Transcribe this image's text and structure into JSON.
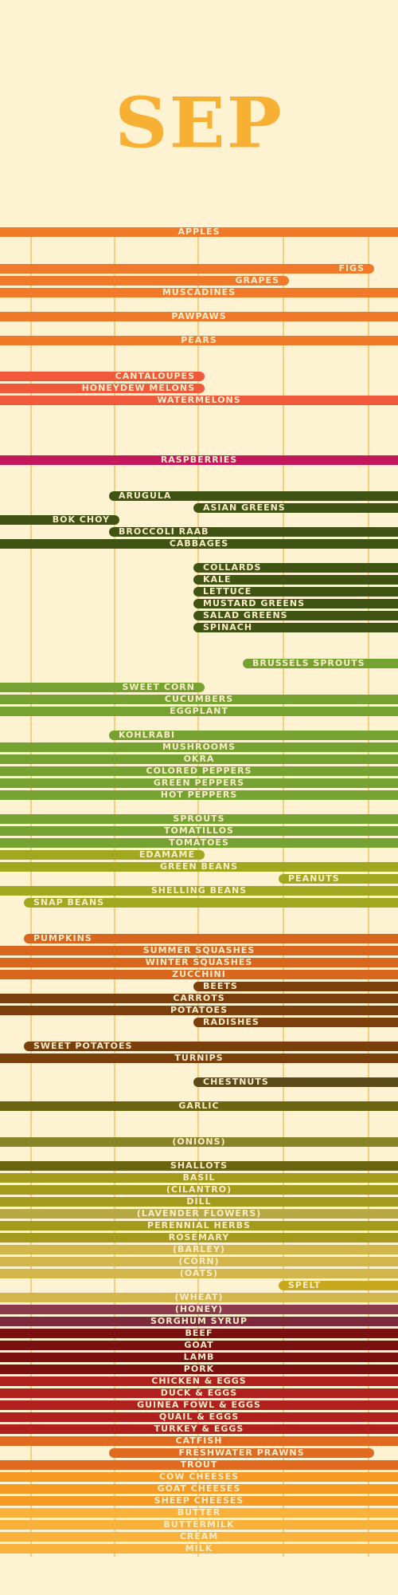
{
  "title": "SEP",
  "crops": [
    {
      "label": "APPLES",
      "color": "#f07a2a",
      "start": 0,
      "end": 500
    },
    {
      "label": "FIGS",
      "color": "#f07a2a",
      "start": 0,
      "end": 470
    },
    {
      "label": "GRAPES",
      "color": "#f07a2a",
      "start": 0,
      "end": 363
    },
    {
      "label": "MUSCADINES",
      "color": "#f07a2a",
      "start": 0,
      "end": 500
    },
    {
      "label": "PAWPAWS",
      "color": "#f07a2a",
      "start": 0,
      "end": 500
    },
    {
      "label": "PEARS",
      "color": "#f07a2a",
      "start": 0,
      "end": 500
    },
    {
      "label": "CANTALOUPES",
      "color": "#f05a3a",
      "start": 0,
      "end": 257
    },
    {
      "label": "HONEYDEW MELONS",
      "color": "#f05a3a",
      "start": 0,
      "end": 257
    },
    {
      "label": "WATERMELONS",
      "color": "#f05a3a",
      "start": 0,
      "end": 500
    },
    {
      "label": "RASPBERRIES",
      "color": "#c2185b",
      "start": 0,
      "end": 500
    },
    {
      "label": "ARUGULA",
      "color": "#3f5412",
      "start": 137,
      "end": 500
    },
    {
      "label": "ASIAN GREENS",
      "color": "#3f5412",
      "start": 243,
      "end": 500
    },
    {
      "label": "BOK CHOY",
      "color": "#3f5412",
      "start": 0,
      "end": 150
    },
    {
      "label": "BROCCOLI RAAB",
      "color": "#3f5412",
      "start": 137,
      "end": 500
    },
    {
      "label": "CABBAGES",
      "color": "#3f5412",
      "start": 0,
      "end": 500
    },
    {
      "label": "COLLARDS",
      "color": "#3f5412",
      "start": 243,
      "end": 500
    },
    {
      "label": "KALE",
      "color": "#3f5412",
      "start": 243,
      "end": 500
    },
    {
      "label": "LETTUCE",
      "color": "#3f5412",
      "start": 243,
      "end": 500
    },
    {
      "label": "MUSTARD GREENS",
      "color": "#3f5412",
      "start": 243,
      "end": 500
    },
    {
      "label": "SALAD GREENS",
      "color": "#3f5412",
      "start": 243,
      "end": 500
    },
    {
      "label": "SPINACH",
      "color": "#3f5412",
      "start": 243,
      "end": 500
    },
    {
      "label": "BRUSSELS SPROUTS",
      "color": "#76a232",
      "start": 305,
      "end": 500
    },
    {
      "label": "SWEET CORN",
      "color": "#76a232",
      "start": 0,
      "end": 257
    },
    {
      "label": "CUCUMBERS",
      "color": "#76a232",
      "start": 0,
      "end": 500
    },
    {
      "label": "EGGPLANT",
      "color": "#76a232",
      "start": 0,
      "end": 500
    },
    {
      "label": "KOHLRABI",
      "color": "#76a232",
      "start": 137,
      "end": 500
    },
    {
      "label": "MUSHROOMS",
      "color": "#76a232",
      "start": 0,
      "end": 500
    },
    {
      "label": "OKRA",
      "color": "#76a232",
      "start": 0,
      "end": 500
    },
    {
      "label": "COLORED PEPPERS",
      "color": "#76a232",
      "start": 0,
      "end": 500
    },
    {
      "label": "GREEN PEPPERS",
      "color": "#76a232",
      "start": 0,
      "end": 500
    },
    {
      "label": "HOT PEPPERS",
      "color": "#76a232",
      "start": 0,
      "end": 500
    },
    {
      "label": "SPROUTS",
      "color": "#76a232",
      "start": 0,
      "end": 500
    },
    {
      "label": "TOMATILLOS",
      "color": "#76a232",
      "start": 0,
      "end": 500
    },
    {
      "label": "TOMATOES",
      "color": "#76a232",
      "start": 0,
      "end": 500
    },
    {
      "label": "EDAMAME",
      "color": "#a0a820",
      "start": 0,
      "end": 257
    },
    {
      "label": "GREEN BEANS",
      "color": "#a0a820",
      "start": 0,
      "end": 500
    },
    {
      "label": "PEANUTS",
      "color": "#a0a820",
      "start": 350,
      "end": 500
    },
    {
      "label": "SHELLING BEANS",
      "color": "#a0a820",
      "start": 0,
      "end": 500
    },
    {
      "label": "SNAP BEANS",
      "color": "#a0a820",
      "start": 30,
      "end": 500
    },
    {
      "label": "PUMPKINS",
      "color": "#d8661c",
      "start": 30,
      "end": 500
    },
    {
      "label": "SUMMER SQUASHES",
      "color": "#d8661c",
      "start": 0,
      "end": 500
    },
    {
      "label": "WINTER SQUASHES",
      "color": "#d8661c",
      "start": 0,
      "end": 500
    },
    {
      "label": "ZUCCHINI",
      "color": "#d8661c",
      "start": 0,
      "end": 500
    },
    {
      "label": "BEETS",
      "color": "#7a3f0b",
      "start": 243,
      "end": 500
    },
    {
      "label": "CARROTS",
      "color": "#7a3f0b",
      "start": 0,
      "end": 500
    },
    {
      "label": "POTATOES",
      "color": "#7a3f0b",
      "start": 0,
      "end": 500
    },
    {
      "label": "RADISHES",
      "color": "#7a3f0b",
      "start": 243,
      "end": 500
    },
    {
      "label": "SWEET POTATOES",
      "color": "#7a3f0b",
      "start": 30,
      "end": 500
    },
    {
      "label": "TURNIPS",
      "color": "#7a3f0b",
      "start": 0,
      "end": 500
    },
    {
      "label": "CHESTNUTS",
      "color": "#5c4a18",
      "start": 243,
      "end": 500
    },
    {
      "label": "GARLIC",
      "color": "#6b6410",
      "start": 0,
      "end": 500
    },
    {
      "label": "(ONIONS)",
      "color": "#8a8428",
      "start": 0,
      "end": 500
    },
    {
      "label": "SHALLOTS",
      "color": "#6b6410",
      "start": 0,
      "end": 500
    },
    {
      "label": "BASIL",
      "color": "#a49a1c",
      "start": 0,
      "end": 500
    },
    {
      "label": "(CILANTRO)",
      "color": "#a49a1c",
      "start": 0,
      "end": 500
    },
    {
      "label": "DILL",
      "color": "#a49a1c",
      "start": 0,
      "end": 500
    },
    {
      "label": "(LAVENDER FLOWERS)",
      "color": "#b8a844",
      "start": 0,
      "end": 500
    },
    {
      "label": "PERENNIAL HERBS",
      "color": "#a49a1c",
      "start": 0,
      "end": 500
    },
    {
      "label": "ROSEMARY",
      "color": "#a49a1c",
      "start": 0,
      "end": 500
    },
    {
      "label": "(BARLEY)",
      "color": "#d2b64c",
      "start": 0,
      "end": 500
    },
    {
      "label": "(CORN)",
      "color": "#d2b64c",
      "start": 0,
      "end": 500
    },
    {
      "label": "(OATS)",
      "color": "#d2b64c",
      "start": 0,
      "end": 500
    },
    {
      "label": "SPELT",
      "color": "#c8a81c",
      "start": 350,
      "end": 500
    },
    {
      "label": "(WHEAT)",
      "color": "#d2b64c",
      "start": 0,
      "end": 500
    },
    {
      "label": "(HONEY)",
      "color": "#8a3a4a",
      "start": 0,
      "end": 500
    },
    {
      "label": "SORGHUM SYRUP",
      "color": "#7c2a3c",
      "start": 0,
      "end": 500
    },
    {
      "label": "BEEF",
      "color": "#7a1010",
      "start": 0,
      "end": 500
    },
    {
      "label": "GOAT",
      "color": "#7a1010",
      "start": 0,
      "end": 500
    },
    {
      "label": "LAMB",
      "color": "#7a1010",
      "start": 0,
      "end": 500
    },
    {
      "label": "PORK",
      "color": "#7a1010",
      "start": 0,
      "end": 500
    },
    {
      "label": "CHICKEN & EGGS",
      "color": "#b0201c",
      "start": 0,
      "end": 500
    },
    {
      "label": "DUCK & EGGS",
      "color": "#b0201c",
      "start": 0,
      "end": 500
    },
    {
      "label": "GUINEA FOWL & EGGS",
      "color": "#b0201c",
      "start": 0,
      "end": 500
    },
    {
      "label": "QUAIL & EGGS",
      "color": "#b0201c",
      "start": 0,
      "end": 500
    },
    {
      "label": "TURKEY & EGGS",
      "color": "#b0201c",
      "start": 0,
      "end": 500
    },
    {
      "label": "CATFISH",
      "color": "#e06a20",
      "start": 0,
      "end": 500
    },
    {
      "label": "FRESHWATER PRAWNS",
      "color": "#e06a20",
      "start": 137,
      "end": 470
    },
    {
      "label": "TROUT",
      "color": "#e06a20",
      "start": 0,
      "end": 500
    },
    {
      "label": "COW CHEESES",
      "color": "#f59a22",
      "start": 0,
      "end": 500
    },
    {
      "label": "GOAT CHEESES",
      "color": "#f59a22",
      "start": 0,
      "end": 500
    },
    {
      "label": "SHEEP CHEESES",
      "color": "#f59a22",
      "start": 0,
      "end": 500
    },
    {
      "label": "BUTTER",
      "color": "#f8b23c",
      "start": 0,
      "end": 500
    },
    {
      "label": "BUTTERMILK",
      "color": "#f8b23c",
      "start": 0,
      "end": 500
    },
    {
      "label": "CREAM",
      "color": "#f8b23c",
      "start": 0,
      "end": 500
    },
    {
      "label": "MILK",
      "color": "#f8b23c",
      "start": 0,
      "end": 500
    }
  ]
}
